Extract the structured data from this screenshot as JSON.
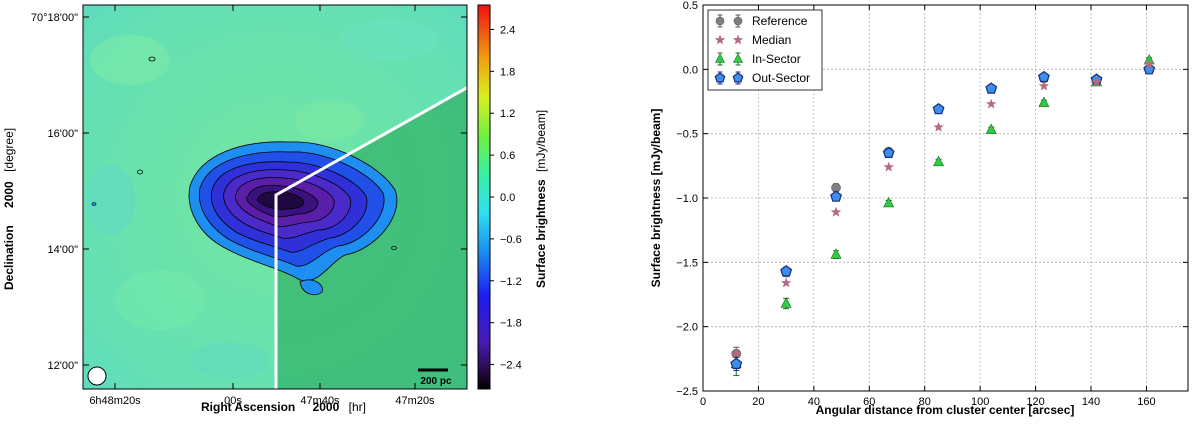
{
  "chart_data": [
    {
      "type": "heatmap",
      "panel": "left",
      "xlabel_bold": "Right Ascension",
      "xlabel_epoch": "2000",
      "xlabel_unit": "[hr]",
      "ylabel_bold": "Declination",
      "ylabel_epoch": "2000",
      "ylabel_unit": "[degree]",
      "x_ticks": [
        "6h48m20s",
        "00s",
        "47m40s",
        "47m20s"
      ],
      "y_ticks": [
        "70°18'00\"",
        "16'00\"",
        "14'00\"",
        "12'00\""
      ],
      "colorbar": {
        "label": "Surface brightness",
        "unit": "[mJy/beam]",
        "ticks": [
          "2.4",
          "1.8",
          "1.2",
          "0.6",
          "0.0",
          "−0.6",
          "−1.2",
          "−1.8",
          "−2.4"
        ],
        "range": [
          -2.75,
          2.75
        ],
        "colormap": "jet"
      },
      "scalebar_label": "200  pc",
      "colors": {
        "background_field": "#5fe0a6",
        "sector_field": "#2fa865",
        "deficit_core": "#2a0a4a",
        "sector_lines": "#ffffff"
      }
    },
    {
      "type": "scatter",
      "panel": "right",
      "xlabel": "Angular distance from cluster center [arcsec]",
      "ylabel": "Surface brightness [mJy/beam]",
      "xlim": [
        0,
        175
      ],
      "ylim": [
        -2.5,
        0.5
      ],
      "x_ticks": [
        "0",
        "20",
        "40",
        "60",
        "80",
        "100",
        "120",
        "140",
        "160"
      ],
      "y_ticks": [
        "0.5",
        "0.0",
        "−0.5",
        "−1.0",
        "−1.5",
        "−2.0",
        "−2.5"
      ],
      "grid": true,
      "legend_position": "top-left",
      "x": [
        12,
        30,
        48,
        67,
        85,
        104,
        123,
        142,
        161
      ],
      "series": [
        {
          "name": "Reference",
          "marker": "circle",
          "color": "#808080",
          "values": [
            -2.21,
            -1.58,
            -0.92,
            -0.64,
            -0.31,
            -0.15,
            -0.07,
            -0.08,
            0.0
          ],
          "errors": [
            0.05,
            0.03,
            0.03,
            0.02,
            0.02,
            0.02,
            0.02,
            0.02,
            0.02
          ]
        },
        {
          "name": "Median",
          "marker": "star",
          "color": "#b56a7e",
          "values": [
            -2.21,
            -1.66,
            -1.11,
            -0.76,
            -0.45,
            -0.27,
            -0.13,
            -0.1,
            0.04
          ],
          "errors": []
        },
        {
          "name": "In-Sector",
          "marker": "triangle",
          "color": "#2ecc40",
          "values": [
            -2.29,
            -1.82,
            -1.44,
            -1.04,
            -0.72,
            -0.47,
            -0.26,
            -0.1,
            0.07
          ],
          "errors": [
            0.09,
            0.04,
            0.03,
            0.02,
            0.02,
            0.02,
            0.02,
            0.02,
            0.02
          ]
        },
        {
          "name": "Out-Sector",
          "marker": "pentagon",
          "color": "#3a8fe8",
          "values": [
            -2.29,
            -1.57,
            -0.99,
            -0.65,
            -0.31,
            -0.15,
            -0.06,
            -0.08,
            0.0
          ],
          "errors": [
            0.05,
            0.03,
            0.02,
            0.02,
            0.02,
            0.02,
            0.02,
            0.02,
            0.02
          ]
        }
      ]
    }
  ]
}
